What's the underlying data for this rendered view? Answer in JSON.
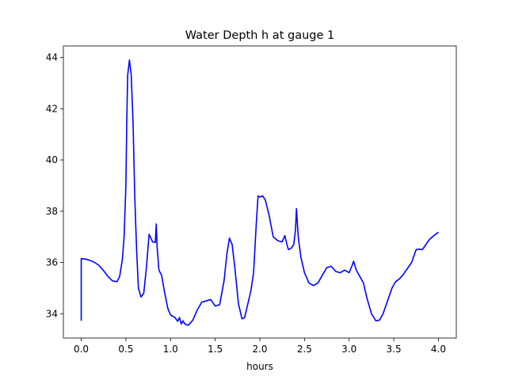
{
  "chart_data": {
    "type": "line",
    "title": "Water Depth h at gauge 1",
    "xlabel": "hours",
    "ylabel": "",
    "xlim": [
      -0.2,
      4.2
    ],
    "ylim": [
      33.05,
      44.45
    ],
    "xticks": [
      0.0,
      0.5,
      1.0,
      1.5,
      2.0,
      2.5,
      3.0,
      3.5,
      4.0
    ],
    "xtick_labels": [
      "0.0",
      "0.5",
      "1.0",
      "1.5",
      "2.0",
      "2.5",
      "3.0",
      "3.5",
      "4.0"
    ],
    "yticks": [
      34,
      36,
      38,
      40,
      42,
      44
    ],
    "ytick_labels": [
      "34",
      "36",
      "38",
      "40",
      "42",
      "44"
    ],
    "grid": false,
    "series": [
      {
        "color": "#0000ff",
        "points": [
          [
            0.0,
            33.72
          ],
          [
            0.0,
            36.15
          ],
          [
            0.05,
            36.13
          ],
          [
            0.1,
            36.08
          ],
          [
            0.15,
            36.0
          ],
          [
            0.2,
            35.88
          ],
          [
            0.25,
            35.68
          ],
          [
            0.3,
            35.45
          ],
          [
            0.35,
            35.28
          ],
          [
            0.4,
            35.25
          ],
          [
            0.43,
            35.45
          ],
          [
            0.46,
            36.1
          ],
          [
            0.48,
            37.0
          ],
          [
            0.5,
            39.0
          ],
          [
            0.51,
            41.5
          ],
          [
            0.52,
            43.3
          ],
          [
            0.54,
            43.9
          ],
          [
            0.56,
            43.3
          ],
          [
            0.58,
            41.5
          ],
          [
            0.6,
            38.5
          ],
          [
            0.62,
            36.5
          ],
          [
            0.64,
            35.0
          ],
          [
            0.67,
            34.65
          ],
          [
            0.7,
            34.8
          ],
          [
            0.73,
            35.8
          ],
          [
            0.76,
            37.1
          ],
          [
            0.8,
            36.8
          ],
          [
            0.83,
            36.78
          ],
          [
            0.84,
            37.5
          ],
          [
            0.85,
            36.6
          ],
          [
            0.87,
            35.7
          ],
          [
            0.9,
            35.5
          ],
          [
            0.93,
            34.9
          ],
          [
            0.97,
            34.2
          ],
          [
            1.0,
            33.95
          ],
          [
            1.05,
            33.85
          ],
          [
            1.08,
            33.7
          ],
          [
            1.1,
            33.85
          ],
          [
            1.12,
            33.6
          ],
          [
            1.14,
            33.72
          ],
          [
            1.16,
            33.6
          ],
          [
            1.2,
            33.55
          ],
          [
            1.25,
            33.75
          ],
          [
            1.3,
            34.15
          ],
          [
            1.35,
            34.45
          ],
          [
            1.4,
            34.5
          ],
          [
            1.45,
            34.55
          ],
          [
            1.5,
            34.3
          ],
          [
            1.55,
            34.35
          ],
          [
            1.6,
            35.3
          ],
          [
            1.63,
            36.3
          ],
          [
            1.66,
            36.95
          ],
          [
            1.69,
            36.7
          ],
          [
            1.72,
            35.8
          ],
          [
            1.76,
            34.4
          ],
          [
            1.8,
            33.8
          ],
          [
            1.83,
            33.85
          ],
          [
            1.86,
            34.3
          ],
          [
            1.9,
            34.9
          ],
          [
            1.93,
            35.6
          ],
          [
            1.96,
            37.5
          ],
          [
            1.98,
            38.6
          ],
          [
            2.0,
            38.55
          ],
          [
            2.03,
            38.6
          ],
          [
            2.06,
            38.45
          ],
          [
            2.1,
            37.9
          ],
          [
            2.15,
            37.0
          ],
          [
            2.2,
            36.85
          ],
          [
            2.25,
            36.8
          ],
          [
            2.28,
            37.05
          ],
          [
            2.3,
            36.75
          ],
          [
            2.32,
            36.5
          ],
          [
            2.35,
            36.55
          ],
          [
            2.38,
            36.7
          ],
          [
            2.4,
            37.3
          ],
          [
            2.41,
            38.1
          ],
          [
            2.43,
            37.0
          ],
          [
            2.46,
            36.2
          ],
          [
            2.5,
            35.6
          ],
          [
            2.55,
            35.2
          ],
          [
            2.6,
            35.1
          ],
          [
            2.65,
            35.2
          ],
          [
            2.7,
            35.5
          ],
          [
            2.75,
            35.8
          ],
          [
            2.8,
            35.85
          ],
          [
            2.85,
            35.65
          ],
          [
            2.9,
            35.6
          ],
          [
            2.95,
            35.7
          ],
          [
            3.0,
            35.6
          ],
          [
            3.03,
            35.85
          ],
          [
            3.05,
            36.05
          ],
          [
            3.08,
            35.7
          ],
          [
            3.12,
            35.45
          ],
          [
            3.16,
            35.2
          ],
          [
            3.2,
            34.6
          ],
          [
            3.25,
            34.0
          ],
          [
            3.3,
            33.72
          ],
          [
            3.34,
            33.75
          ],
          [
            3.38,
            34.0
          ],
          [
            3.43,
            34.5
          ],
          [
            3.48,
            35.0
          ],
          [
            3.52,
            35.25
          ],
          [
            3.56,
            35.35
          ],
          [
            3.6,
            35.5
          ],
          [
            3.65,
            35.75
          ],
          [
            3.7,
            36.0
          ],
          [
            3.75,
            36.5
          ],
          [
            3.78,
            36.52
          ],
          [
            3.82,
            36.5
          ],
          [
            3.86,
            36.7
          ],
          [
            3.9,
            36.9
          ],
          [
            3.95,
            37.05
          ],
          [
            4.0,
            37.18
          ]
        ]
      }
    ]
  }
}
